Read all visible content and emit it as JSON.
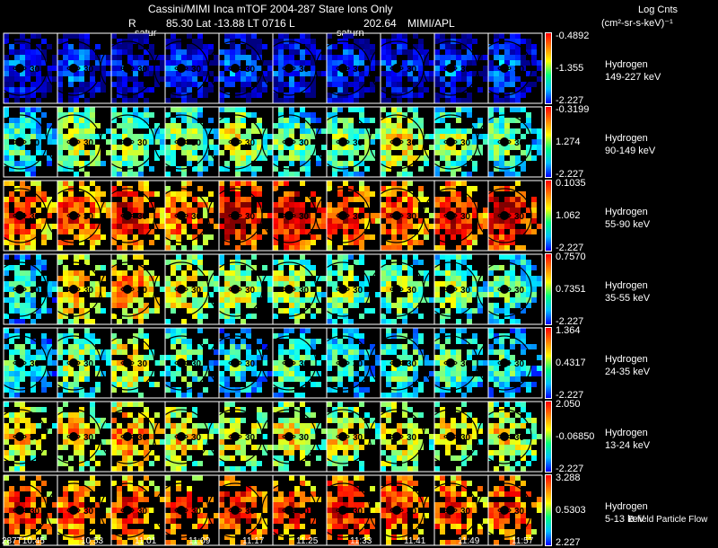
{
  "header": {
    "line1": "Cassini/MIMI Inca mTOF  2004-287    Stare    Ions Only",
    "line2_r": "R",
    "line2_vals": "85.30 Lat -13.88 LT 0716 L",
    "line2_l": "202.64",
    "line2_src": "MIMI/APL",
    "saturn_a": "satur",
    "saturn_b": "saturn"
  },
  "units": {
    "line1": "Log Cnts",
    "line2": "(cm²-sr-s-keV)⁻¹"
  },
  "footer": {
    "note": "B-field Particle Flow"
  },
  "colors": {
    "background": "#000000",
    "ring": "#000000",
    "saturn": "#000000"
  },
  "chart_data": {
    "type": "heatmap",
    "title": "Cassini/MIMI Inca mTOF  2004-287    Stare    Ions Only",
    "time_labels": [
      "287T10:45",
      "10:53",
      "11:01",
      "11:09",
      "11:17",
      "11:25",
      "11:33",
      "11:41",
      "11:49",
      "11:57"
    ],
    "ring_label": "30",
    "species": [
      {
        "name": "Hydrogen",
        "energy": "149-227 keV",
        "max": "-0.4892",
        "mid": "-1.355",
        "min": "-2.227",
        "intensity": [
          0.1,
          0.12,
          0.05,
          0.1,
          0.12,
          0.1,
          0.12,
          0.08,
          0.1,
          0.12
        ]
      },
      {
        "name": "Hydrogen",
        "energy": "90-149 keV",
        "max": "-0.3199",
        "mid": "1.274",
        "min": "-2.227",
        "intensity": [
          0.35,
          0.5,
          0.45,
          0.45,
          0.5,
          0.4,
          0.45,
          0.55,
          0.45,
          0.4
        ]
      },
      {
        "name": "Hydrogen",
        "energy": "55-90 keV",
        "max": "0.1035",
        "mid": "1.062",
        "min": "-2.227",
        "intensity": [
          0.75,
          0.75,
          0.8,
          0.7,
          0.85,
          0.85,
          0.75,
          0.75,
          0.8,
          0.85
        ]
      },
      {
        "name": "Hydrogen",
        "energy": "35-55 keV",
        "max": "0.7570",
        "mid": "0.7351",
        "min": "-2.227",
        "intensity": [
          0.35,
          0.6,
          0.65,
          0.55,
          0.5,
          0.5,
          0.45,
          0.45,
          0.45,
          0.4
        ]
      },
      {
        "name": "Hydrogen",
        "energy": "24-35 keV",
        "max": "1.364",
        "mid": "0.4317",
        "min": "-2.227",
        "intensity": [
          0.35,
          0.45,
          0.55,
          0.4,
          0.35,
          0.4,
          0.35,
          0.4,
          0.4,
          0.35
        ]
      },
      {
        "name": "Hydrogen",
        "energy": "13-24 keV",
        "max": "2.050",
        "mid": "-0.06850",
        "min": "-2.227",
        "intensity": [
          0.55,
          0.6,
          0.65,
          0.55,
          0.55,
          0.55,
          0.55,
          0.55,
          0.55,
          0.55
        ]
      },
      {
        "name": "Hydrogen",
        "energy": "5-13 keV",
        "max": "3.288",
        "mid": "0.5303",
        "min": "2.227",
        "intensity": [
          0.75,
          0.7,
          0.75,
          0.75,
          0.8,
          0.75,
          0.8,
          0.75,
          0.75,
          0.75
        ]
      }
    ]
  }
}
